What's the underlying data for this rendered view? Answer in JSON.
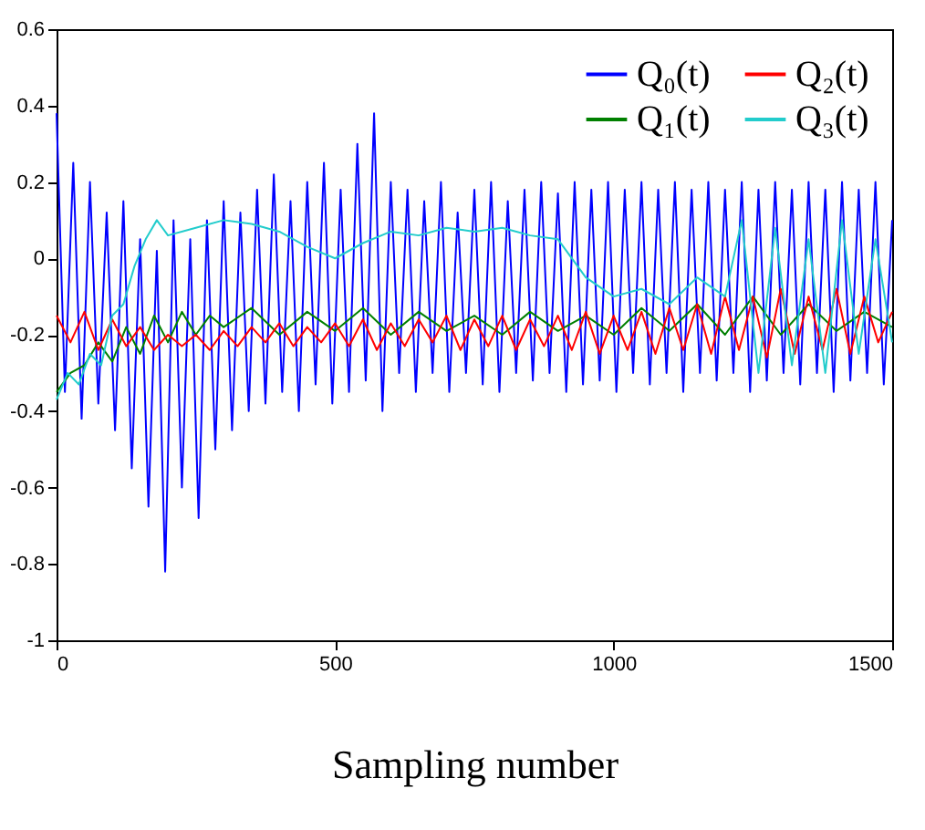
{
  "chart_data": {
    "type": "line",
    "xlabel": "Sampling number",
    "xlim": [
      0,
      1500
    ],
    "xticks": [
      0,
      500,
      1000,
      1500
    ],
    "ylim": [
      -1,
      0.6
    ],
    "yticks": [
      -1,
      -0.8,
      -0.6,
      -0.4,
      -0.2,
      0,
      0.2,
      0.4,
      0.6
    ],
    "legend": "top right",
    "series": [
      {
        "name": "Q₀(t)",
        "color": "#0000ff",
        "x": [
          0,
          15,
          30,
          45,
          60,
          75,
          90,
          105,
          120,
          135,
          150,
          165,
          180,
          195,
          210,
          225,
          240,
          255,
          270,
          285,
          300,
          315,
          330,
          345,
          360,
          375,
          390,
          405,
          420,
          435,
          450,
          465,
          480,
          495,
          510,
          525,
          540,
          555,
          570,
          585,
          600,
          615,
          630,
          645,
          660,
          675,
          690,
          705,
          720,
          735,
          750,
          765,
          780,
          795,
          810,
          825,
          840,
          855,
          870,
          885,
          900,
          915,
          930,
          945,
          960,
          975,
          990,
          1005,
          1020,
          1035,
          1050,
          1065,
          1080,
          1095,
          1110,
          1125,
          1140,
          1155,
          1170,
          1185,
          1200,
          1215,
          1230,
          1245,
          1260,
          1275,
          1290,
          1305,
          1320,
          1335,
          1350,
          1365,
          1380,
          1395,
          1410,
          1425,
          1440,
          1455,
          1470,
          1485,
          1500
        ],
        "values": [
          0.38,
          -0.35,
          0.25,
          -0.42,
          0.2,
          -0.38,
          0.12,
          -0.45,
          0.15,
          -0.55,
          0.05,
          -0.65,
          0.02,
          -0.82,
          0.1,
          -0.6,
          0.05,
          -0.68,
          0.1,
          -0.5,
          0.15,
          -0.45,
          0.12,
          -0.4,
          0.18,
          -0.38,
          0.22,
          -0.35,
          0.15,
          -0.4,
          0.2,
          -0.33,
          0.25,
          -0.38,
          0.18,
          -0.35,
          0.3,
          -0.32,
          0.38,
          -0.4,
          0.2,
          -0.3,
          0.18,
          -0.35,
          0.15,
          -0.3,
          0.2,
          -0.35,
          0.12,
          -0.3,
          0.18,
          -0.33,
          0.2,
          -0.35,
          0.15,
          -0.3,
          0.18,
          -0.32,
          0.2,
          -0.3,
          0.17,
          -0.35,
          0.2,
          -0.33,
          0.18,
          -0.32,
          0.2,
          -0.35,
          0.18,
          -0.3,
          0.2,
          -0.33,
          0.18,
          -0.3,
          0.2,
          -0.35,
          0.18,
          -0.3,
          0.2,
          -0.32,
          0.18,
          -0.3,
          0.2,
          -0.35,
          0.18,
          -0.32,
          0.2,
          -0.3,
          0.18,
          -0.33,
          0.2,
          -0.3,
          0.18,
          -0.35,
          0.2,
          -0.32,
          0.18,
          -0.3,
          0.2,
          -0.33,
          0.1
        ]
      },
      {
        "name": "Q₁(t)",
        "color": "#008000",
        "x": [
          0,
          25,
          50,
          75,
          100,
          125,
          150,
          175,
          200,
          225,
          250,
          275,
          300,
          350,
          400,
          450,
          500,
          550,
          600,
          650,
          700,
          750,
          800,
          850,
          900,
          950,
          1000,
          1050,
          1100,
          1150,
          1200,
          1250,
          1300,
          1350,
          1400,
          1450,
          1500
        ],
        "values": [
          -0.35,
          -0.3,
          -0.28,
          -0.22,
          -0.27,
          -0.18,
          -0.25,
          -0.15,
          -0.22,
          -0.14,
          -0.2,
          -0.15,
          -0.18,
          -0.13,
          -0.2,
          -0.14,
          -0.19,
          -0.13,
          -0.2,
          -0.14,
          -0.19,
          -0.15,
          -0.2,
          -0.14,
          -0.19,
          -0.15,
          -0.2,
          -0.13,
          -0.19,
          -0.12,
          -0.2,
          -0.1,
          -0.2,
          -0.12,
          -0.19,
          -0.14,
          -0.18
        ]
      },
      {
        "name": "Q₂(t)",
        "color": "#ff0000",
        "x": [
          0,
          25,
          50,
          75,
          100,
          125,
          150,
          175,
          200,
          225,
          250,
          275,
          300,
          325,
          350,
          375,
          400,
          425,
          450,
          475,
          500,
          525,
          550,
          575,
          600,
          625,
          650,
          675,
          700,
          725,
          750,
          775,
          800,
          825,
          850,
          875,
          900,
          925,
          950,
          975,
          1000,
          1025,
          1050,
          1075,
          1100,
          1125,
          1150,
          1175,
          1200,
          1225,
          1250,
          1275,
          1300,
          1325,
          1350,
          1375,
          1400,
          1425,
          1450,
          1475,
          1500
        ],
        "values": [
          -0.15,
          -0.22,
          -0.14,
          -0.24,
          -0.16,
          -0.23,
          -0.18,
          -0.24,
          -0.2,
          -0.23,
          -0.2,
          -0.24,
          -0.19,
          -0.23,
          -0.18,
          -0.22,
          -0.17,
          -0.23,
          -0.18,
          -0.22,
          -0.17,
          -0.23,
          -0.16,
          -0.24,
          -0.17,
          -0.23,
          -0.16,
          -0.22,
          -0.15,
          -0.24,
          -0.16,
          -0.23,
          -0.15,
          -0.24,
          -0.16,
          -0.23,
          -0.15,
          -0.24,
          -0.14,
          -0.25,
          -0.15,
          -0.24,
          -0.14,
          -0.25,
          -0.13,
          -0.24,
          -0.12,
          -0.25,
          -0.1,
          -0.24,
          -0.1,
          -0.26,
          -0.08,
          -0.25,
          -0.1,
          -0.24,
          -0.08,
          -0.25,
          -0.1,
          -0.22,
          -0.14
        ]
      },
      {
        "name": "Q₃(t)",
        "color": "#22cccc",
        "x": [
          0,
          20,
          40,
          60,
          80,
          100,
          120,
          140,
          160,
          180,
          200,
          250,
          300,
          350,
          400,
          450,
          500,
          550,
          600,
          650,
          700,
          750,
          800,
          850,
          900,
          950,
          1000,
          1050,
          1100,
          1150,
          1200,
          1230,
          1260,
          1290,
          1320,
          1350,
          1380,
          1410,
          1440,
          1470,
          1500
        ],
        "values": [
          -0.37,
          -0.3,
          -0.33,
          -0.25,
          -0.28,
          -0.15,
          -0.12,
          -0.02,
          0.05,
          0.1,
          0.06,
          0.08,
          0.1,
          0.09,
          0.07,
          0.03,
          0.0,
          0.04,
          0.07,
          0.06,
          0.08,
          0.07,
          0.08,
          0.06,
          0.05,
          -0.05,
          -0.1,
          -0.08,
          -0.12,
          -0.05,
          -0.1,
          0.1,
          -0.3,
          0.08,
          -0.28,
          0.05,
          -0.3,
          0.1,
          -0.25,
          0.05,
          -0.22
        ]
      }
    ]
  }
}
